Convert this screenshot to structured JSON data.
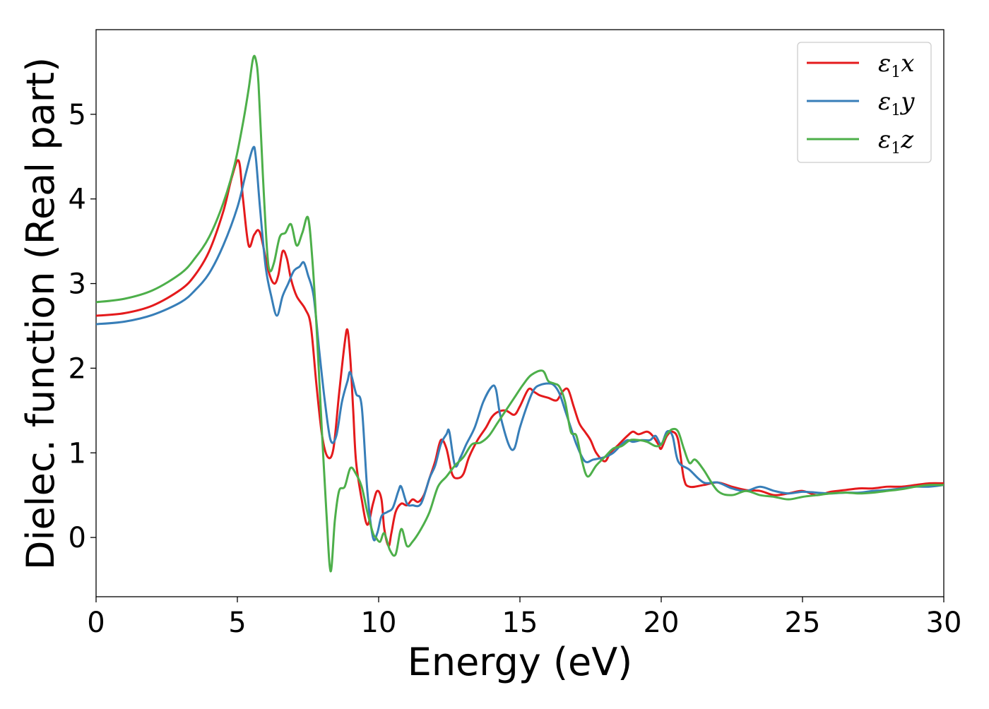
{
  "chart_data": {
    "type": "line",
    "title": "",
    "xlabel": "Energy (eV)",
    "ylabel": "Dielec. function (Real part)",
    "xlim": [
      0,
      30
    ],
    "ylim": [
      -0.7,
      6.0
    ],
    "xticks": [
      0,
      5,
      10,
      15,
      20,
      25,
      30
    ],
    "yticks": [
      0,
      1,
      2,
      3,
      4,
      5
    ],
    "grid": false,
    "legend_position": "top-right",
    "series": [
      {
        "name": "ε1x",
        "legend_main": "ε",
        "legend_sub": "1",
        "legend_suffix": "x",
        "color": "#e41a1c",
        "x": [
          0,
          1,
          2,
          3,
          3.5,
          4,
          4.5,
          4.8,
          5.05,
          5.2,
          5.4,
          5.6,
          5.8,
          6.1,
          6.3,
          6.45,
          6.6,
          6.75,
          6.9,
          7.1,
          7.4,
          7.6,
          7.8,
          8.0,
          8.2,
          8.4,
          8.6,
          8.8,
          8.9,
          9.0,
          9.1,
          9.2,
          9.4,
          9.6,
          9.8,
          9.95,
          10.1,
          10.2,
          10.35,
          10.45,
          10.6,
          10.8,
          11.0,
          11.2,
          11.4,
          11.6,
          11.8,
          12.0,
          12.2,
          12.4,
          12.6,
          12.8,
          13.0,
          13.2,
          13.5,
          13.8,
          14.0,
          14.2,
          14.5,
          14.8,
          15.0,
          15.3,
          15.5,
          15.7,
          16.0,
          16.3,
          16.5,
          16.7,
          16.9,
          17.1,
          17.3,
          17.5,
          17.7,
          18.0,
          18.2,
          18.5,
          18.8,
          19.0,
          19.2,
          19.5,
          19.7,
          19.9,
          20.0,
          20.2,
          20.4,
          20.6,
          20.8,
          21.0,
          21.5,
          22.0,
          22.5,
          23.0,
          23.5,
          24.0,
          24.5,
          25.0,
          25.5,
          26.0,
          26.5,
          27.0,
          27.5,
          28.0,
          28.5,
          29.0,
          29.5,
          30.0
        ],
        "y": [
          2.62,
          2.65,
          2.74,
          2.93,
          3.1,
          3.38,
          3.85,
          4.25,
          4.45,
          4.0,
          3.45,
          3.58,
          3.6,
          3.15,
          3.0,
          3.1,
          3.38,
          3.3,
          3.05,
          2.85,
          2.7,
          2.5,
          1.8,
          1.2,
          0.95,
          1.05,
          1.7,
          2.3,
          2.45,
          2.1,
          1.5,
          0.9,
          0.45,
          0.15,
          0.4,
          0.55,
          0.45,
          0.1,
          -0.1,
          0.05,
          0.3,
          0.4,
          0.38,
          0.45,
          0.42,
          0.5,
          0.7,
          0.9,
          1.15,
          1.05,
          0.75,
          0.7,
          0.75,
          0.95,
          1.15,
          1.3,
          1.42,
          1.48,
          1.5,
          1.45,
          1.55,
          1.75,
          1.72,
          1.68,
          1.65,
          1.62,
          1.72,
          1.75,
          1.55,
          1.35,
          1.25,
          1.15,
          1.0,
          0.9,
          1.0,
          1.1,
          1.2,
          1.25,
          1.22,
          1.25,
          1.2,
          1.1,
          1.05,
          1.2,
          1.25,
          1.15,
          0.7,
          0.6,
          0.62,
          0.65,
          0.6,
          0.56,
          0.55,
          0.5,
          0.52,
          0.55,
          0.5,
          0.54,
          0.56,
          0.58,
          0.58,
          0.6,
          0.6,
          0.62,
          0.64,
          0.64
        ]
      },
      {
        "name": "ε1y",
        "legend_main": "ε",
        "legend_sub": "1",
        "legend_suffix": "y",
        "color": "#377eb8",
        "x": [
          0,
          1,
          2,
          3,
          3.5,
          4,
          4.5,
          5.0,
          5.3,
          5.55,
          5.65,
          5.8,
          6.0,
          6.2,
          6.4,
          6.6,
          6.8,
          7.0,
          7.2,
          7.35,
          7.5,
          7.7,
          7.9,
          8.1,
          8.3,
          8.5,
          8.7,
          8.9,
          9.0,
          9.2,
          9.4,
          9.6,
          9.8,
          9.95,
          10.1,
          10.3,
          10.5,
          10.7,
          10.8,
          11.0,
          11.2,
          11.5,
          11.8,
          12.0,
          12.2,
          12.4,
          12.5,
          12.7,
          12.9,
          13.1,
          13.4,
          13.7,
          14.0,
          14.15,
          14.3,
          14.6,
          14.8,
          15.0,
          15.3,
          15.5,
          15.7,
          16.0,
          16.2,
          16.4,
          16.6,
          16.8,
          17.0,
          17.3,
          17.6,
          18.0,
          18.3,
          18.6,
          18.8,
          19.0,
          19.3,
          19.6,
          19.8,
          20.0,
          20.2,
          20.4,
          20.6,
          21.0,
          21.5,
          22.0,
          22.5,
          23.0,
          23.5,
          24.0,
          24.5,
          25.0,
          25.5,
          26.0,
          26.5,
          27.0,
          27.5,
          28.0,
          28.5,
          29.0,
          29.5,
          30.0
        ],
        "y": [
          2.52,
          2.55,
          2.63,
          2.78,
          2.92,
          3.12,
          3.45,
          3.9,
          4.3,
          4.6,
          4.5,
          3.9,
          3.2,
          2.85,
          2.62,
          2.85,
          3.0,
          3.15,
          3.2,
          3.25,
          3.1,
          2.85,
          2.2,
          1.6,
          1.15,
          1.2,
          1.6,
          1.85,
          1.95,
          1.7,
          1.55,
          0.55,
          0.0,
          0.05,
          0.25,
          0.3,
          0.35,
          0.55,
          0.6,
          0.4,
          0.38,
          0.4,
          0.7,
          0.85,
          1.1,
          1.22,
          1.25,
          0.85,
          0.95,
          1.1,
          1.3,
          1.6,
          1.78,
          1.75,
          1.45,
          1.1,
          1.05,
          1.3,
          1.6,
          1.75,
          1.8,
          1.82,
          1.8,
          1.7,
          1.5,
          1.3,
          1.1,
          0.9,
          0.92,
          0.95,
          1.0,
          1.1,
          1.15,
          1.13,
          1.15,
          1.15,
          1.2,
          1.1,
          1.25,
          1.2,
          0.9,
          0.8,
          0.65,
          0.65,
          0.58,
          0.55,
          0.6,
          0.55,
          0.52,
          0.54,
          0.53,
          0.52,
          0.53,
          0.53,
          0.55,
          0.56,
          0.58,
          0.6,
          0.6,
          0.62
        ]
      },
      {
        "name": "ε1z",
        "legend_main": "ε",
        "legend_sub": "1",
        "legend_suffix": "z",
        "color": "#4daf4a",
        "x": [
          0,
          1,
          2,
          3,
          3.5,
          4,
          4.5,
          4.9,
          5.2,
          5.4,
          5.55,
          5.65,
          5.75,
          5.9,
          6.05,
          6.15,
          6.3,
          6.5,
          6.7,
          6.9,
          7.1,
          7.3,
          7.5,
          7.65,
          7.8,
          8.0,
          8.15,
          8.3,
          8.45,
          8.6,
          8.8,
          9.0,
          9.2,
          9.4,
          9.6,
          9.8,
          9.9,
          10.05,
          10.2,
          10.4,
          10.6,
          10.8,
          11.0,
          11.2,
          11.5,
          11.8,
          12.1,
          12.4,
          12.7,
          13.0,
          13.3,
          13.6,
          13.9,
          14.2,
          14.5,
          14.8,
          15.1,
          15.4,
          15.8,
          16.0,
          16.2,
          16.4,
          16.6,
          16.8,
          17.0,
          17.2,
          17.4,
          17.7,
          18.0,
          18.3,
          18.6,
          18.9,
          19.2,
          19.5,
          19.8,
          20.0,
          20.2,
          20.4,
          20.6,
          20.8,
          21.0,
          21.2,
          21.5,
          22.0,
          22.5,
          23.0,
          23.5,
          24.0,
          24.5,
          25.0,
          25.5,
          26.0,
          26.5,
          27.0,
          27.5,
          28.0,
          28.5,
          29.0,
          29.5,
          30.0
        ],
        "y": [
          2.78,
          2.82,
          2.92,
          3.12,
          3.3,
          3.55,
          3.95,
          4.4,
          4.9,
          5.3,
          5.65,
          5.65,
          5.35,
          4.3,
          3.4,
          3.15,
          3.25,
          3.55,
          3.6,
          3.7,
          3.45,
          3.6,
          3.78,
          3.3,
          2.5,
          1.2,
          0.3,
          -0.4,
          0.2,
          0.55,
          0.6,
          0.82,
          0.75,
          0.6,
          0.3,
          0.05,
          0.0,
          -0.05,
          0.05,
          -0.15,
          -0.2,
          0.1,
          -0.1,
          -0.05,
          0.1,
          0.3,
          0.6,
          0.72,
          0.85,
          0.95,
          1.1,
          1.12,
          1.2,
          1.35,
          1.5,
          1.65,
          1.8,
          1.92,
          1.97,
          1.85,
          1.82,
          1.78,
          1.6,
          1.25,
          1.2,
          0.9,
          0.72,
          0.85,
          0.95,
          1.05,
          1.08,
          1.15,
          1.15,
          1.13,
          1.08,
          1.1,
          1.22,
          1.28,
          1.25,
          1.05,
          0.88,
          0.92,
          0.8,
          0.55,
          0.5,
          0.55,
          0.5,
          0.48,
          0.45,
          0.48,
          0.5,
          0.52,
          0.53,
          0.52,
          0.53,
          0.55,
          0.57,
          0.6,
          0.62,
          0.62
        ]
      }
    ]
  }
}
